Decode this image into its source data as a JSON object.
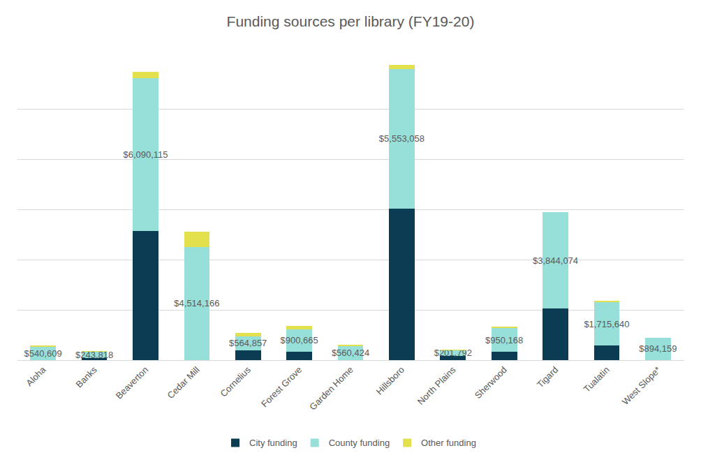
{
  "chart_data": {
    "type": "bar",
    "title": "Funding sources per library (FY19-20)",
    "categories": [
      "Aloha",
      "Banks",
      "Beaverton",
      "Cedar Mill",
      "Cornelius",
      "Forest Grove",
      "Garden Home",
      "Hillsboro",
      "North Plains",
      "Sherwood",
      "Tigard",
      "Tualatin",
      "West Slope*"
    ],
    "series": [
      {
        "name": "City funding",
        "color": "#0b3c53",
        "values": [
          0,
          80000,
          5160000,
          0,
          390000,
          330000,
          0,
          6050000,
          180000,
          330000,
          2050000,
          590000,
          0
        ]
      },
      {
        "name": "County funding",
        "color": "#97e0d9",
        "values": [
          540609,
          243818,
          6090115,
          4514166,
          564857,
          900665,
          560424,
          5553058,
          201792,
          950168,
          3844074,
          1715640,
          894159
        ],
        "value_labels": [
          "$540,609",
          "$243,818",
          "$6,090,115",
          "$4,514,166",
          "$564,857",
          "$900,665",
          "$560,424",
          "$5,553,058",
          "$201,792",
          "$950,168",
          "$3,844,074",
          "$1,715,640",
          "$894,159"
        ]
      },
      {
        "name": "Other funding",
        "color": "#e3e04e",
        "values": [
          50000,
          30000,
          240000,
          620000,
          120000,
          120000,
          60000,
          180000,
          30000,
          60000,
          20000,
          60000,
          0
        ]
      }
    ],
    "stacked": true,
    "data_labels": true,
    "ylim": [
      0,
      12000000
    ],
    "yticks": [
      0,
      2000000,
      4000000,
      6000000,
      8000000,
      10000000,
      12000000
    ],
    "tick_labels": "x",
    "grid": true,
    "legend": "bottom"
  }
}
